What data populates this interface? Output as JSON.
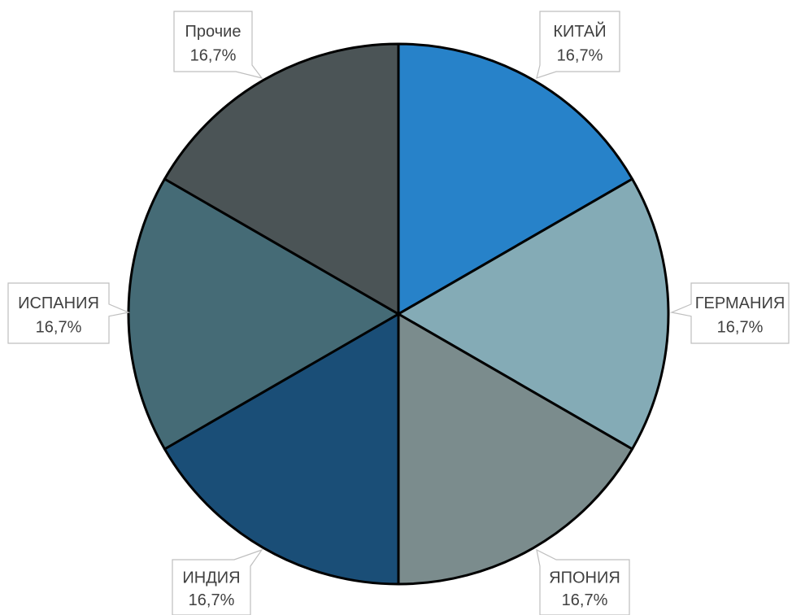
{
  "chart_data": {
    "type": "pie",
    "start_angle_deg": 0,
    "direction": "clockwise",
    "slices": [
      {
        "label": "КИТАЙ",
        "value": 16.7,
        "display": "16,7%",
        "color": "#2782c9"
      },
      {
        "label": "ГЕРМАНИЯ",
        "value": 16.7,
        "display": "16,7%",
        "color": "#84abb6"
      },
      {
        "label": "ЯПОНИЯ",
        "value": 16.7,
        "display": "16,7%",
        "color": "#7b8c8d"
      },
      {
        "label": "ИНДИЯ",
        "value": 16.7,
        "display": "16,7%",
        "color": "#1a4e77"
      },
      {
        "label": "ИСПАНИЯ",
        "value": 16.7,
        "display": "16,7%",
        "color": "#456b76"
      },
      {
        "label": "Прочие",
        "value": 16.7,
        "display": "16,7%",
        "color": "#4b5456"
      }
    ],
    "legend": "none",
    "data_labels": "callouts"
  }
}
